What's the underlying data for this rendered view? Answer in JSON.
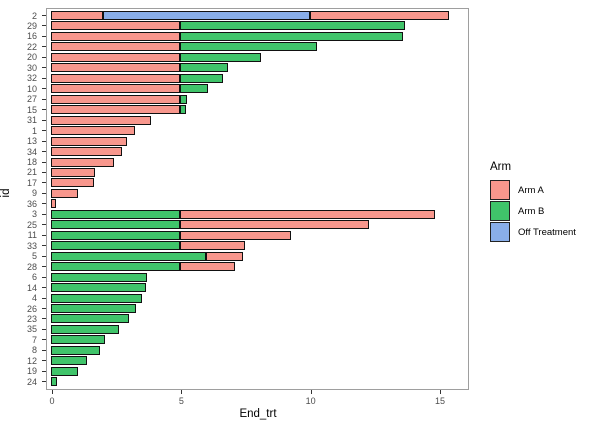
{
  "chart_data": {
    "type": "bar",
    "orientation": "horizontal-stacked",
    "title": "",
    "xlabel": "End_trt",
    "ylabel": "id",
    "xlim": [
      0,
      16.3
    ],
    "xticks": [
      0,
      5,
      10,
      15
    ],
    "grid": false,
    "legend": {
      "title": "Arm",
      "position": "right",
      "entries": [
        {
          "label": "Arm A",
          "color": "#F8978D"
        },
        {
          "label": "Arm B",
          "color": "#40C46A"
        },
        {
          "label": "Off Treatment",
          "color": "#89AEE9"
        }
      ]
    },
    "arm_colors": {
      "Arm A": "#F8978D",
      "Arm B": "#40C46A",
      "Off Treatment": "#89AEE9"
    },
    "rows": [
      {
        "id": "2",
        "segments": [
          {
            "arm": "Arm A",
            "from": 0,
            "to": 2.0
          },
          {
            "arm": "Off Treatment",
            "from": 2.0,
            "to": 10.0
          },
          {
            "arm": "Arm A",
            "from": 10.0,
            "to": 15.4
          }
        ]
      },
      {
        "id": "29",
        "segments": [
          {
            "arm": "Arm A",
            "from": 0,
            "to": 5.0
          },
          {
            "arm": "Arm B",
            "from": 5.0,
            "to": 13.7
          }
        ]
      },
      {
        "id": "16",
        "segments": [
          {
            "arm": "Arm A",
            "from": 0,
            "to": 5.0
          },
          {
            "arm": "Arm B",
            "from": 5.0,
            "to": 13.6
          }
        ]
      },
      {
        "id": "22",
        "segments": [
          {
            "arm": "Arm A",
            "from": 0,
            "to": 5.0
          },
          {
            "arm": "Arm B",
            "from": 5.0,
            "to": 10.3
          }
        ]
      },
      {
        "id": "20",
        "segments": [
          {
            "arm": "Arm A",
            "from": 0,
            "to": 5.0
          },
          {
            "arm": "Arm B",
            "from": 5.0,
            "to": 8.1
          }
        ]
      },
      {
        "id": "30",
        "segments": [
          {
            "arm": "Arm A",
            "from": 0,
            "to": 5.0
          },
          {
            "arm": "Arm B",
            "from": 5.0,
            "to": 6.85
          }
        ]
      },
      {
        "id": "32",
        "segments": [
          {
            "arm": "Arm A",
            "from": 0,
            "to": 5.0
          },
          {
            "arm": "Arm B",
            "from": 5.0,
            "to": 6.65
          }
        ]
      },
      {
        "id": "10",
        "segments": [
          {
            "arm": "Arm A",
            "from": 0,
            "to": 5.0
          },
          {
            "arm": "Arm B",
            "from": 5.0,
            "to": 6.05
          }
        ]
      },
      {
        "id": "27",
        "segments": [
          {
            "arm": "Arm A",
            "from": 0,
            "to": 5.0
          },
          {
            "arm": "Arm B",
            "from": 5.0,
            "to": 5.27
          }
        ]
      },
      {
        "id": "15",
        "segments": [
          {
            "arm": "Arm A",
            "from": 0,
            "to": 5.0
          },
          {
            "arm": "Arm B",
            "from": 5.0,
            "to": 5.2
          }
        ]
      },
      {
        "id": "31",
        "segments": [
          {
            "arm": "Arm A",
            "from": 0,
            "to": 3.86
          }
        ]
      },
      {
        "id": "1",
        "segments": [
          {
            "arm": "Arm A",
            "from": 0,
            "to": 3.26
          }
        ]
      },
      {
        "id": "13",
        "segments": [
          {
            "arm": "Arm A",
            "from": 0,
            "to": 2.95
          }
        ]
      },
      {
        "id": "34",
        "segments": [
          {
            "arm": "Arm A",
            "from": 0,
            "to": 2.74
          }
        ]
      },
      {
        "id": "18",
        "segments": [
          {
            "arm": "Arm A",
            "from": 0,
            "to": 2.42
          }
        ]
      },
      {
        "id": "21",
        "segments": [
          {
            "arm": "Arm A",
            "from": 0,
            "to": 1.72
          }
        ]
      },
      {
        "id": "17",
        "segments": [
          {
            "arm": "Arm A",
            "from": 0,
            "to": 1.65
          }
        ]
      },
      {
        "id": "9",
        "segments": [
          {
            "arm": "Arm A",
            "from": 0,
            "to": 1.03
          }
        ]
      },
      {
        "id": "36",
        "segments": [
          {
            "arm": "Arm A",
            "from": 0,
            "to": 0.2
          }
        ]
      },
      {
        "id": "3",
        "segments": [
          {
            "arm": "Arm B",
            "from": 0,
            "to": 5.0
          },
          {
            "arm": "Arm A",
            "from": 5.0,
            "to": 14.85
          }
        ]
      },
      {
        "id": "25",
        "segments": [
          {
            "arm": "Arm B",
            "from": 0,
            "to": 5.0
          },
          {
            "arm": "Arm A",
            "from": 5.0,
            "to": 12.28
          }
        ]
      },
      {
        "id": "11",
        "segments": [
          {
            "arm": "Arm B",
            "from": 0,
            "to": 5.0
          },
          {
            "arm": "Arm A",
            "from": 5.0,
            "to": 9.27
          }
        ]
      },
      {
        "id": "33",
        "segments": [
          {
            "arm": "Arm B",
            "from": 0,
            "to": 5.0
          },
          {
            "arm": "Arm A",
            "from": 5.0,
            "to": 7.5
          }
        ]
      },
      {
        "id": "5",
        "segments": [
          {
            "arm": "Arm B",
            "from": 0,
            "to": 6.0
          },
          {
            "arm": "Arm A",
            "from": 6.0,
            "to": 7.43
          }
        ]
      },
      {
        "id": "28",
        "segments": [
          {
            "arm": "Arm B",
            "from": 0,
            "to": 5.0
          },
          {
            "arm": "Arm A",
            "from": 5.0,
            "to": 7.1
          }
        ]
      },
      {
        "id": "6",
        "segments": [
          {
            "arm": "Arm B",
            "from": 0,
            "to": 3.72
          }
        ]
      },
      {
        "id": "14",
        "segments": [
          {
            "arm": "Arm B",
            "from": 0,
            "to": 3.66
          }
        ]
      },
      {
        "id": "4",
        "segments": [
          {
            "arm": "Arm B",
            "from": 0,
            "to": 3.5
          }
        ]
      },
      {
        "id": "26",
        "segments": [
          {
            "arm": "Arm B",
            "from": 0,
            "to": 3.3
          }
        ]
      },
      {
        "id": "23",
        "segments": [
          {
            "arm": "Arm B",
            "from": 0,
            "to": 3.0
          }
        ]
      },
      {
        "id": "35",
        "segments": [
          {
            "arm": "Arm B",
            "from": 0,
            "to": 2.64
          }
        ]
      },
      {
        "id": "7",
        "segments": [
          {
            "arm": "Arm B",
            "from": 0,
            "to": 2.1
          }
        ]
      },
      {
        "id": "8",
        "segments": [
          {
            "arm": "Arm B",
            "from": 0,
            "to": 1.9
          }
        ]
      },
      {
        "id": "12",
        "segments": [
          {
            "arm": "Arm B",
            "from": 0,
            "to": 1.4
          }
        ]
      },
      {
        "id": "19",
        "segments": [
          {
            "arm": "Arm B",
            "from": 0,
            "to": 1.05
          }
        ]
      },
      {
        "id": "24",
        "segments": [
          {
            "arm": "Arm B",
            "from": 0,
            "to": 0.25
          }
        ]
      }
    ]
  },
  "layout_hints": {
    "bar_border_color": "#111111",
    "panel_border_color": "#9e9e9e",
    "tick_label_color": "#4d4d4d"
  }
}
